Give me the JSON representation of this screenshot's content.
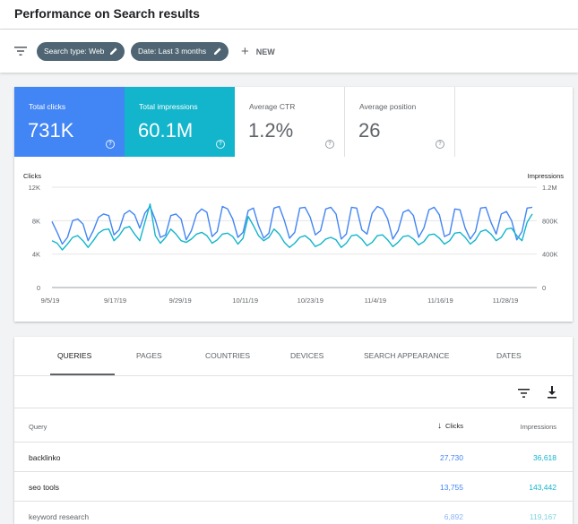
{
  "header": {
    "title": "Performance on Search results"
  },
  "filters": {
    "chips": [
      {
        "label": "Search type: Web"
      },
      {
        "label": "Date: Last 3 months"
      }
    ],
    "new_label": "NEW",
    "new_plus": "+"
  },
  "metrics": [
    {
      "label": "Total clicks",
      "value": "731K",
      "help": "?"
    },
    {
      "label": "Total impressions",
      "value": "60.1M",
      "help": "?"
    },
    {
      "label": "Average CTR",
      "value": "1.2%",
      "help": "?"
    },
    {
      "label": "Average position",
      "value": "26",
      "help": "?"
    }
  ],
  "colors": {
    "clicks": "#4285f4",
    "impressions": "#12b5cb",
    "chip": "#4f6573"
  },
  "chart_data": {
    "type": "line",
    "left_axis_label": "Clicks",
    "right_axis_label": "Impressions",
    "left_ticks": [
      "12K",
      "8K",
      "4K",
      "0"
    ],
    "right_ticks": [
      "1.2M",
      "800K",
      "400K",
      "0"
    ],
    "ylim_left": [
      0,
      12000
    ],
    "ylim_right": [
      0,
      1200000
    ],
    "x_tick_labels": [
      "9/5/19",
      "9/17/19",
      "9/29/19",
      "10/11/19",
      "10/23/19",
      "11/4/19",
      "11/16/19",
      "11/28/19"
    ],
    "grid": true,
    "series": [
      {
        "name": "Clicks",
        "axis": "left",
        "values": [
          7900,
          6600,
          5200,
          6000,
          8000,
          8200,
          7600,
          5600,
          6800,
          8400,
          8800,
          8600,
          6300,
          6900,
          8800,
          9200,
          8700,
          7100,
          8900,
          9700,
          8100,
          6000,
          6300,
          8600,
          8800,
          8200,
          5700,
          6800,
          8800,
          9400,
          9000,
          6100,
          6700,
          9700,
          9400,
          8200,
          6000,
          6600,
          9200,
          9500,
          7400,
          5900,
          6500,
          9500,
          9700,
          8000,
          5900,
          6600,
          9500,
          9600,
          8400,
          6300,
          6800,
          9400,
          9600,
          8800,
          5800,
          6400,
          9600,
          9500,
          6900,
          6400,
          8900,
          9700,
          9400,
          8200,
          5800,
          6800,
          9000,
          9300,
          8600,
          6000,
          7100,
          9300,
          9600,
          8700,
          6100,
          6400,
          9400,
          9300,
          7100,
          5800,
          6700,
          9500,
          9600,
          7800,
          6400,
          8800,
          9100,
          8000,
          5700,
          6700,
          9500,
          9600
        ]
      },
      {
        "name": "Impressions",
        "axis": "right",
        "values": [
          560000,
          530000,
          450000,
          520000,
          600000,
          620000,
          560000,
          480000,
          560000,
          650000,
          690000,
          700000,
          560000,
          620000,
          710000,
          730000,
          640000,
          560000,
          780000,
          1000000,
          620000,
          530000,
          600000,
          700000,
          640000,
          560000,
          540000,
          580000,
          640000,
          660000,
          620000,
          530000,
          570000,
          640000,
          650000,
          610000,
          520000,
          590000,
          850000,
          740000,
          620000,
          560000,
          600000,
          700000,
          640000,
          540000,
          480000,
          530000,
          600000,
          620000,
          570000,
          490000,
          520000,
          580000,
          600000,
          570000,
          480000,
          530000,
          620000,
          630000,
          580000,
          500000,
          540000,
          620000,
          630000,
          570000,
          490000,
          540000,
          610000,
          620000,
          580000,
          510000,
          550000,
          630000,
          640000,
          590000,
          520000,
          560000,
          650000,
          660000,
          600000,
          520000,
          570000,
          670000,
          690000,
          640000,
          560000,
          600000,
          700000,
          710000,
          620000,
          560000,
          780000,
          880000
        ]
      }
    ]
  },
  "tabs": [
    {
      "label": "QUERIES"
    },
    {
      "label": "PAGES"
    },
    {
      "label": "COUNTRIES"
    },
    {
      "label": "DEVICES"
    },
    {
      "label": "SEARCH APPEARANCE"
    },
    {
      "label": "DATES"
    }
  ],
  "table": {
    "columns": {
      "query": "Query",
      "clicks": "Clicks",
      "impressions": "Impressions",
      "sort_arrow": "↓"
    },
    "rows": [
      {
        "query": "backlinko",
        "clicks": "27,730",
        "impressions": "36,618"
      },
      {
        "query": "seo tools",
        "clicks": "13,755",
        "impressions": "143,442"
      },
      {
        "query": "keyword research",
        "clicks": "6,892",
        "impressions": "119,167"
      }
    ]
  }
}
